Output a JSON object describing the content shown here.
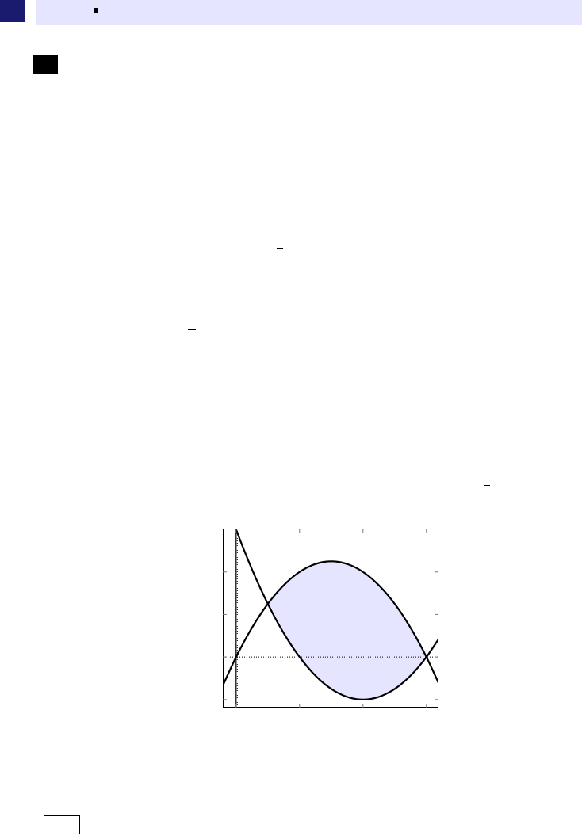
{
  "colors": {
    "corner": "#1a1a6e",
    "header": "#e5e5ff",
    "fill": "#e5e5ff",
    "curve": "#000000"
  },
  "chart_data": {
    "type": "line",
    "title": "",
    "xlabel": "",
    "ylabel": "",
    "xlim": [
      -0.21,
      3.19
    ],
    "ylim": [
      -1.19,
      3.02
    ],
    "xticks": [
      0,
      1,
      2,
      3
    ],
    "yticks": [
      -1,
      0,
      1,
      2
    ],
    "grid": false,
    "reference_lines": {
      "x": 0,
      "y": 0,
      "style": "dotted"
    },
    "x": [
      -0.2,
      0,
      0.2,
      0.4,
      0.6,
      0.8,
      1.0,
      1.2,
      1.4,
      1.6,
      1.8,
      2.0,
      2.2,
      2.4,
      2.6,
      2.8,
      3.0,
      3.2
    ],
    "series": [
      {
        "values": [
          -0.64,
          0,
          0.56,
          1.04,
          1.44,
          1.76,
          2,
          2.16,
          2.24,
          2.24,
          2.16,
          2,
          1.76,
          1.44,
          1.04,
          0.56,
          0,
          -0.64
        ]
      },
      {
        "values": [
          3.84,
          3,
          2.24,
          1.56,
          0.96,
          0.44,
          0,
          -0.36,
          -0.64,
          -0.84,
          -0.96,
          -1,
          -0.96,
          -0.84,
          -0.64,
          -0.36,
          0,
          0.44
        ]
      }
    ],
    "intersections": [
      [
        0.5,
        1.25
      ],
      [
        3,
        0
      ]
    ],
    "shaded_region": {
      "between_series": [
        0,
        1
      ],
      "x_range": [
        0.5,
        3
      ]
    }
  }
}
